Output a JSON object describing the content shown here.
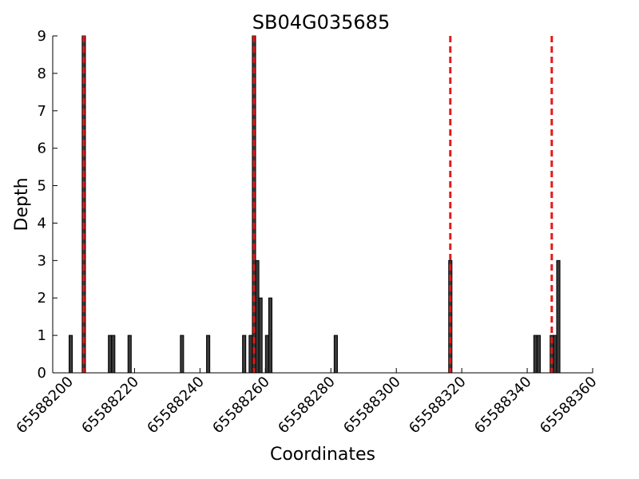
{
  "chart_data": {
    "type": "bar",
    "title": "SB04G035685",
    "xlabel": "Coordinates",
    "ylabel": "Depth",
    "xlim": [
      65588195,
      65588360
    ],
    "ylim": [
      0,
      9
    ],
    "xticks": [
      65588200,
      65588220,
      65588240,
      65588260,
      65588280,
      65588300,
      65588320,
      65588340,
      65588360
    ],
    "yticks": [
      0,
      1,
      2,
      3,
      4,
      5,
      6,
      7,
      8,
      9
    ],
    "bar_width": 1,
    "bar_color": "#3a3a3a",
    "marker_color": "#e31a1c",
    "grid": false,
    "series": [
      {
        "x": [
          65588200,
          65588204,
          65588212,
          65588213,
          65588218,
          65588234,
          65588242,
          65588253,
          65588255,
          65588256,
          65588257,
          65588258,
          65588260,
          65588261,
          65588281,
          65588316,
          65588342,
          65588343,
          65588347,
          65588348,
          65588349
        ],
        "values": [
          1,
          9,
          1,
          1,
          1,
          1,
          1,
          1,
          1,
          9,
          3,
          2,
          1,
          2,
          1,
          3,
          1,
          1,
          1,
          1,
          3
        ]
      }
    ],
    "markers": [
      65588204.5,
      65588256.5,
      65588316.5,
      65588347.5
    ]
  }
}
